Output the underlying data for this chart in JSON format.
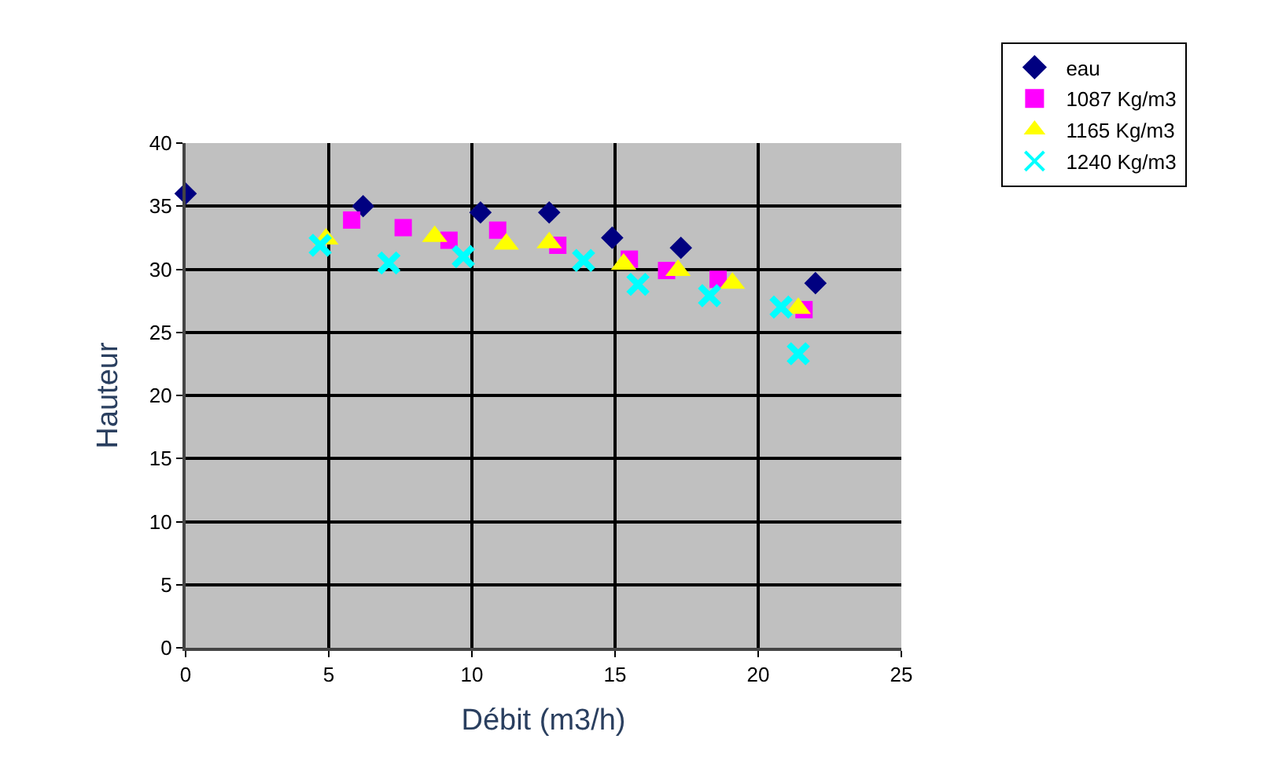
{
  "chart_data": {
    "type": "scatter",
    "xlabel": "Débit (m3/h)",
    "ylabel": "Hauteur",
    "xlim": [
      0,
      25
    ],
    "xticks": [
      0,
      5,
      10,
      15,
      20,
      25
    ],
    "ylim": [
      0,
      40
    ],
    "yticks": [
      0,
      5,
      10,
      15,
      20,
      25,
      30,
      35,
      40
    ],
    "grid": true,
    "legend": "top right",
    "series": [
      {
        "name": "eau",
        "color": "#000080",
        "marker": "diamond",
        "x": [
          0,
          6.2,
          10.3,
          12.7,
          14.9,
          17.3,
          22.0
        ],
        "values": [
          36.0,
          35.0,
          34.5,
          34.5,
          32.5,
          31.7,
          28.9
        ]
      },
      {
        "name": "1087 Kg/m3",
        "color": "#ff00ff",
        "marker": "square",
        "x": [
          5.8,
          7.6,
          9.2,
          10.9,
          13.0,
          15.5,
          16.8,
          18.6,
          21.6
        ],
        "values": [
          33.9,
          33.3,
          32.3,
          33.1,
          31.9,
          30.8,
          29.9,
          29.2,
          26.8
        ]
      },
      {
        "name": "1165 Kg/m3",
        "color": "#ffff00",
        "marker": "triangle",
        "x": [
          4.9,
          8.7,
          11.2,
          12.7,
          15.3,
          17.2,
          19.1,
          21.4
        ],
        "values": [
          32.4,
          32.6,
          32.0,
          32.1,
          30.4,
          29.9,
          28.9,
          26.9
        ]
      },
      {
        "name": "1240 Kg/m3",
        "color": "#00ffff",
        "marker": "cross",
        "x": [
          4.7,
          7.1,
          9.7,
          13.9,
          15.8,
          18.3,
          20.8,
          21.4
        ],
        "values": [
          31.9,
          30.5,
          31.0,
          30.7,
          28.8,
          27.9,
          27.0,
          23.3
        ]
      }
    ]
  }
}
